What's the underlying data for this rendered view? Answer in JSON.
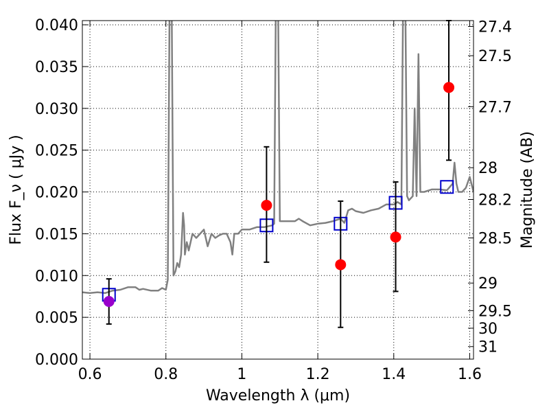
{
  "chart_data": {
    "type": "scatter",
    "xlabel": "Wavelength  λ (μm)",
    "ylabel": "Flux  F_ν  ( μJy )",
    "ylabel_right": "Magnitude (AB)",
    "xlim": [
      0.58,
      1.61
    ],
    "ylim": [
      0.0,
      0.0405
    ],
    "grid": true,
    "x_ticks": [
      0.6,
      0.8,
      1.0,
      1.2,
      1.4,
      1.6
    ],
    "x_tick_labels": [
      "0.6",
      "0.8",
      "1",
      "1.2",
      "1.4",
      "1.6"
    ],
    "y_ticks": [
      0.0,
      0.005,
      0.01,
      0.015,
      0.02,
      0.025,
      0.03,
      0.035,
      0.04
    ],
    "y_tick_labels": [
      "0.000",
      "0.005",
      "0.010",
      "0.015",
      "0.020",
      "0.025",
      "0.030",
      "0.035",
      "0.040"
    ],
    "right_ticks": [
      {
        "flux": 0.0398,
        "label": "27.4"
      },
      {
        "flux": 0.0363,
        "label": "27.5"
      },
      {
        "flux": 0.0302,
        "label": "27.7"
      },
      {
        "flux": 0.0229,
        "label": "28"
      },
      {
        "flux": 0.0191,
        "label": "28.2"
      },
      {
        "flux": 0.0145,
        "label": "28.5"
      },
      {
        "flux": 0.0091,
        "label": "29"
      },
      {
        "flux": 0.0058,
        "label": "29.5"
      },
      {
        "flux": 0.0037,
        "label": "30"
      },
      {
        "flux": 0.0015,
        "label": "31"
      }
    ],
    "series": [
      {
        "kind": "line",
        "color": "#808080",
        "points": [
          [
            0.58,
            0.008
          ],
          [
            0.6,
            0.0079
          ],
          [
            0.62,
            0.008
          ],
          [
            0.64,
            0.0079
          ],
          [
            0.66,
            0.0082
          ],
          [
            0.68,
            0.0083
          ],
          [
            0.7,
            0.0086
          ],
          [
            0.72,
            0.0086
          ],
          [
            0.73,
            0.0083
          ],
          [
            0.74,
            0.0084
          ],
          [
            0.76,
            0.0082
          ],
          [
            0.78,
            0.0082
          ],
          [
            0.79,
            0.0085
          ],
          [
            0.8,
            0.0083
          ],
          [
            0.805,
            0.0095
          ],
          [
            0.81,
            0.045
          ],
          [
            0.815,
            0.045
          ],
          [
            0.82,
            0.01
          ],
          [
            0.825,
            0.0105
          ],
          [
            0.83,
            0.0115
          ],
          [
            0.835,
            0.011
          ],
          [
            0.84,
            0.0125
          ],
          [
            0.845,
            0.0175
          ],
          [
            0.848,
            0.016
          ],
          [
            0.85,
            0.0125
          ],
          [
            0.855,
            0.014
          ],
          [
            0.86,
            0.013
          ],
          [
            0.87,
            0.015
          ],
          [
            0.88,
            0.0145
          ],
          [
            0.89,
            0.015
          ],
          [
            0.9,
            0.0155
          ],
          [
            0.91,
            0.0135
          ],
          [
            0.92,
            0.015
          ],
          [
            0.93,
            0.0145
          ],
          [
            0.94,
            0.0148
          ],
          [
            0.95,
            0.015
          ],
          [
            0.96,
            0.015
          ],
          [
            0.97,
            0.014
          ],
          [
            0.975,
            0.0125
          ],
          [
            0.98,
            0.015
          ],
          [
            0.99,
            0.015
          ],
          [
            1.0,
            0.0155
          ],
          [
            1.02,
            0.0155
          ],
          [
            1.04,
            0.0158
          ],
          [
            1.06,
            0.0158
          ],
          [
            1.08,
            0.016
          ],
          [
            1.085,
            0.0162
          ],
          [
            1.09,
            0.045
          ],
          [
            1.095,
            0.045
          ],
          [
            1.1,
            0.0165
          ],
          [
            1.12,
            0.0165
          ],
          [
            1.14,
            0.0165
          ],
          [
            1.15,
            0.0168
          ],
          [
            1.16,
            0.0165
          ],
          [
            1.18,
            0.016
          ],
          [
            1.2,
            0.0162
          ],
          [
            1.22,
            0.0163
          ],
          [
            1.24,
            0.0165
          ],
          [
            1.26,
            0.0168
          ],
          [
            1.27,
            0.0163
          ],
          [
            1.28,
            0.0178
          ],
          [
            1.29,
            0.018
          ],
          [
            1.3,
            0.0177
          ],
          [
            1.32,
            0.0175
          ],
          [
            1.34,
            0.0178
          ],
          [
            1.36,
            0.018
          ],
          [
            1.38,
            0.0185
          ],
          [
            1.4,
            0.0185
          ],
          [
            1.41,
            0.0188
          ],
          [
            1.42,
            0.0185
          ],
          [
            1.425,
            0.045
          ],
          [
            1.43,
            0.045
          ],
          [
            1.435,
            0.0195
          ],
          [
            1.44,
            0.019
          ],
          [
            1.45,
            0.0195
          ],
          [
            1.455,
            0.03
          ],
          [
            1.46,
            0.0195
          ],
          [
            1.465,
            0.0365
          ],
          [
            1.47,
            0.02
          ],
          [
            1.48,
            0.02
          ],
          [
            1.5,
            0.0203
          ],
          [
            1.52,
            0.0203
          ],
          [
            1.54,
            0.0202
          ],
          [
            1.555,
            0.021
          ],
          [
            1.56,
            0.0235
          ],
          [
            1.565,
            0.021
          ],
          [
            1.57,
            0.02
          ],
          [
            1.58,
            0.02
          ],
          [
            1.59,
            0.0205
          ],
          [
            1.6,
            0.0218
          ],
          [
            1.61,
            0.02
          ]
        ]
      },
      {
        "kind": "square",
        "color": "#0000cc",
        "points": [
          [
            0.65,
            0.0077
          ],
          [
            1.065,
            0.016
          ],
          [
            1.26,
            0.0162
          ],
          [
            1.405,
            0.0187
          ],
          [
            1.54,
            0.0206
          ]
        ]
      },
      {
        "kind": "errorbar",
        "color": "#ff0000",
        "points": [
          {
            "x": 1.065,
            "y": 0.0184,
            "lo": 0.0116,
            "hi": 0.0254
          },
          {
            "x": 1.26,
            "y": 0.0113,
            "lo": 0.0038,
            "hi": 0.0189
          },
          {
            "x": 1.405,
            "y": 0.0146,
            "lo": 0.0081,
            "hi": 0.0212
          },
          {
            "x": 1.545,
            "y": 0.0325,
            "lo": 0.0238,
            "hi": 0.0405
          }
        ]
      },
      {
        "kind": "errorbar",
        "color": "#9900cc",
        "points": [
          {
            "x": 0.65,
            "y": 0.0069,
            "lo": 0.0042,
            "hi": 0.0096
          }
        ]
      }
    ]
  }
}
